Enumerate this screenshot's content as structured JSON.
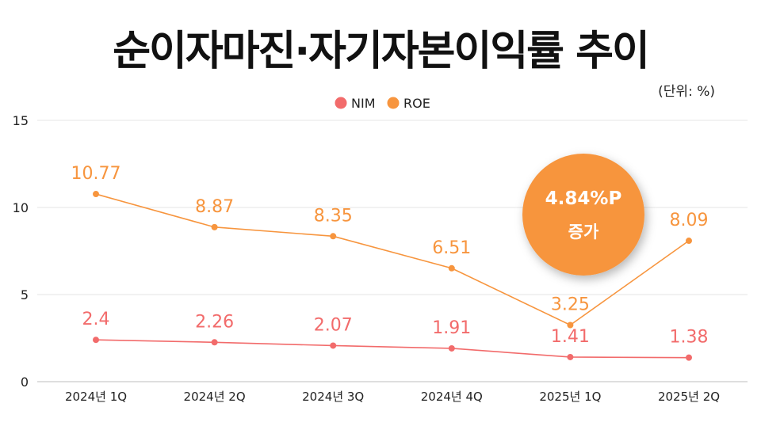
{
  "title": "순이자마진·자기자본이익률 추이",
  "unit_note": "(단위: %)",
  "annotation": {
    "value": "4.84%P",
    "text": "증가",
    "color": "#F7953E"
  },
  "chart_data": {
    "type": "line",
    "title": "순이자마진·자기자본이익률 추이",
    "xlabel": "",
    "ylabel": "",
    "ylim": [
      0,
      15
    ],
    "yticks": [
      0,
      5,
      10,
      15
    ],
    "grid": true,
    "legend_position": "top-center",
    "categories": [
      "2024년 1Q",
      "2024년 2Q",
      "2024년 3Q",
      "2024년 4Q",
      "2025년 1Q",
      "2025년 2Q"
    ],
    "series": [
      {
        "name": "NIM",
        "color": "#F26B6B",
        "values": [
          2.4,
          2.26,
          2.07,
          1.91,
          1.41,
          1.38
        ],
        "labels": [
          "2.4",
          "2.26",
          "2.07",
          "1.91",
          "1.41",
          "1.38"
        ]
      },
      {
        "name": "ROE",
        "color": "#F7953E",
        "values": [
          10.77,
          8.87,
          8.35,
          6.51,
          3.25,
          8.09
        ],
        "labels": [
          "10.77",
          "8.87",
          "8.35",
          "6.51",
          "3.25",
          "8.09"
        ]
      }
    ]
  }
}
